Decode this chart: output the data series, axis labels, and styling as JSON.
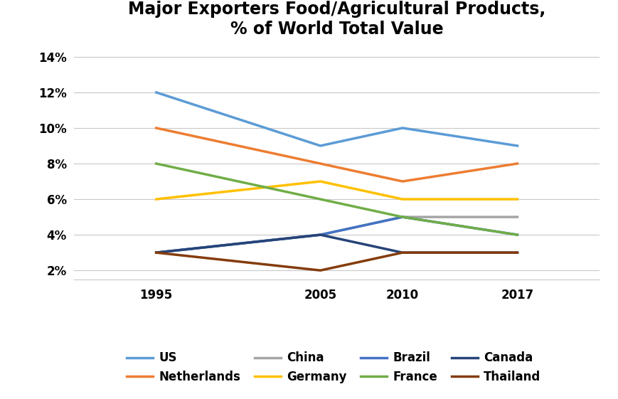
{
  "title": "Major Exporters Food/Agricultural Products,\n% of World Total Value",
  "years": [
    1995,
    2005,
    2010,
    2017
  ],
  "series": [
    {
      "name": "US",
      "values": [
        0.12,
        0.09,
        0.1,
        0.09
      ],
      "color": "#5B9BD5",
      "lw": 2.5
    },
    {
      "name": "Netherlands",
      "values": [
        0.1,
        0.08,
        0.07,
        0.08
      ],
      "color": "#ED7D31",
      "lw": 2.5
    },
    {
      "name": "China",
      "values": [
        0.03,
        0.04,
        0.05,
        0.05
      ],
      "color": "#A5A5A5",
      "lw": 2.5
    },
    {
      "name": "Germany",
      "values": [
        0.06,
        0.07,
        0.06,
        0.06
      ],
      "color": "#FFC000",
      "lw": 2.5
    },
    {
      "name": "Brazil",
      "values": [
        0.03,
        0.04,
        0.05,
        0.04
      ],
      "color": "#4472C4",
      "lw": 2.5
    },
    {
      "name": "France",
      "values": [
        0.08,
        0.06,
        0.05,
        0.04
      ],
      "color": "#70AD47",
      "lw": 2.5
    },
    {
      "name": "Canada",
      "values": [
        0.03,
        0.04,
        0.03,
        0.03
      ],
      "color": "#264478",
      "lw": 2.5
    },
    {
      "name": "Thailand",
      "values": [
        0.03,
        0.02,
        0.03,
        0.03
      ],
      "color": "#843C0C",
      "lw": 2.5
    }
  ],
  "ylim": [
    0.015,
    0.145
  ],
  "yticks": [
    0.02,
    0.04,
    0.06,
    0.08,
    0.1,
    0.12,
    0.14
  ],
  "xlim": [
    1990,
    2022
  ],
  "grid_color": "#C8C8C8",
  "background_color": "#FFFFFF",
  "title_fontsize": 17,
  "tick_fontsize": 12,
  "legend_fontsize": 12
}
